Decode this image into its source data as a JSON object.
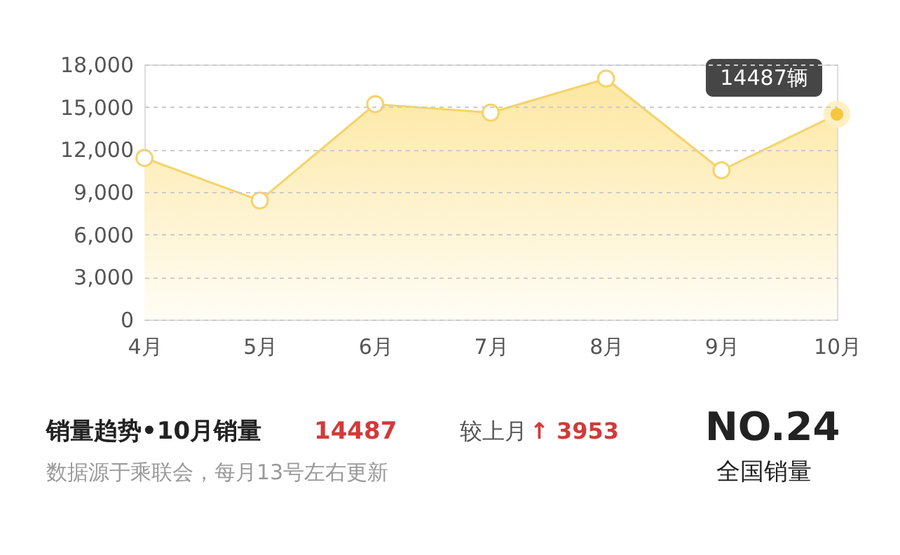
{
  "chart_data": {
    "type": "area",
    "categories": [
      "4月",
      "5月",
      "6月",
      "7月",
      "8月",
      "9月",
      "10月"
    ],
    "series": [
      {
        "color": "#f5d36b",
        "values": [
          11400,
          8400,
          15200,
          14600,
          17000,
          10534,
          14487
        ]
      }
    ],
    "ylim": [
      0,
      18000
    ],
    "yticks": [
      {
        "value": 0,
        "label": "0"
      },
      {
        "value": 3000,
        "label": "3,000"
      },
      {
        "value": 6000,
        "label": "6,000"
      },
      {
        "value": 9000,
        "label": "9,000"
      },
      {
        "value": 12000,
        "label": "12,000"
      },
      {
        "value": 15000,
        "label": "15,000"
      },
      {
        "value": 18000,
        "label": "18,000"
      }
    ],
    "grid": "y",
    "marker": "circle",
    "annotations": [
      {
        "text": "14487辆",
        "x": "10月",
        "y": 14487
      },
      "销量趋势•10月销量",
      "14487",
      "较上月",
      "↑ 3953",
      "数据源于乘联会，每月13号左右更新",
      "NO.24",
      "全国销量"
    ]
  }
}
